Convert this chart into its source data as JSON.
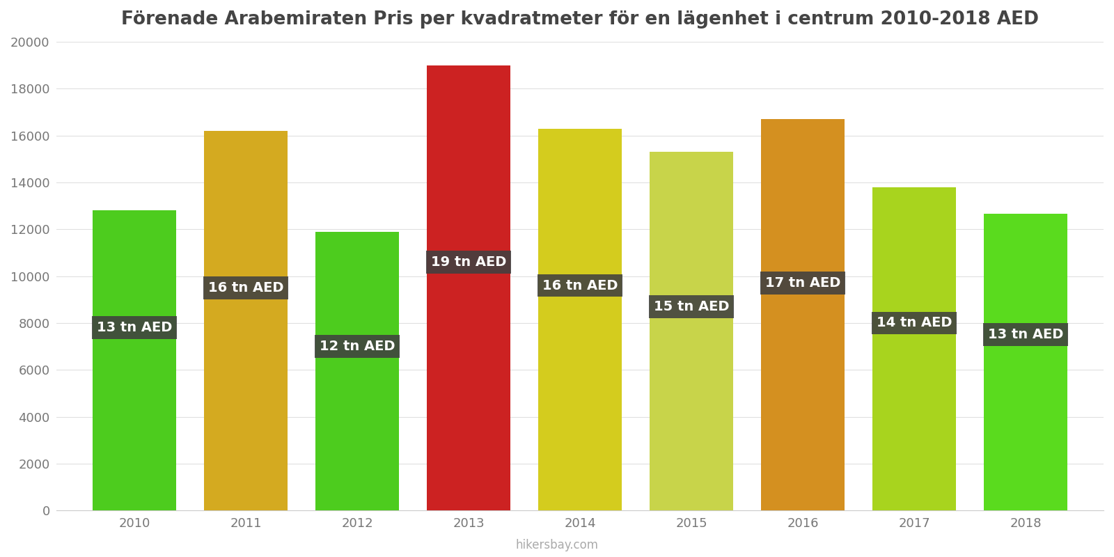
{
  "title": "Förenade Arabemiraten Pris per kvadratmeter för en lägenhet i centrum 2010-2018 AED",
  "years": [
    2010,
    2011,
    2012,
    2013,
    2014,
    2015,
    2016,
    2017,
    2018
  ],
  "values": [
    12800,
    16200,
    11900,
    19000,
    16300,
    15300,
    16700,
    13800,
    12650
  ],
  "labels": [
    "13 tn AED",
    "16 tn AED",
    "12 tn AED",
    "19 tn AED",
    "16 tn AED",
    "15 tn AED",
    "17 tn AED",
    "14 tn AED",
    "13 tn AED"
  ],
  "bar_colors": [
    "#4dcc1e",
    "#d4aa20",
    "#4dcc1e",
    "#cc2222",
    "#d4cc1e",
    "#c8d44a",
    "#d49020",
    "#a8d41e",
    "#5adb1e"
  ],
  "background_color": "#ffffff",
  "ylim": [
    0,
    20000
  ],
  "yticks": [
    0,
    2000,
    4000,
    6000,
    8000,
    10000,
    12000,
    14000,
    16000,
    18000,
    20000
  ],
  "watermark": "hikersbay.com",
  "label_bg_color": "#404040",
  "label_text_color": "#ffffff",
  "title_color": "#444444",
  "grid_color": "#e0e0e0",
  "label_y_positions": [
    7800,
    9500,
    7000,
    10600,
    9600,
    8700,
    9700,
    8000,
    7500
  ]
}
